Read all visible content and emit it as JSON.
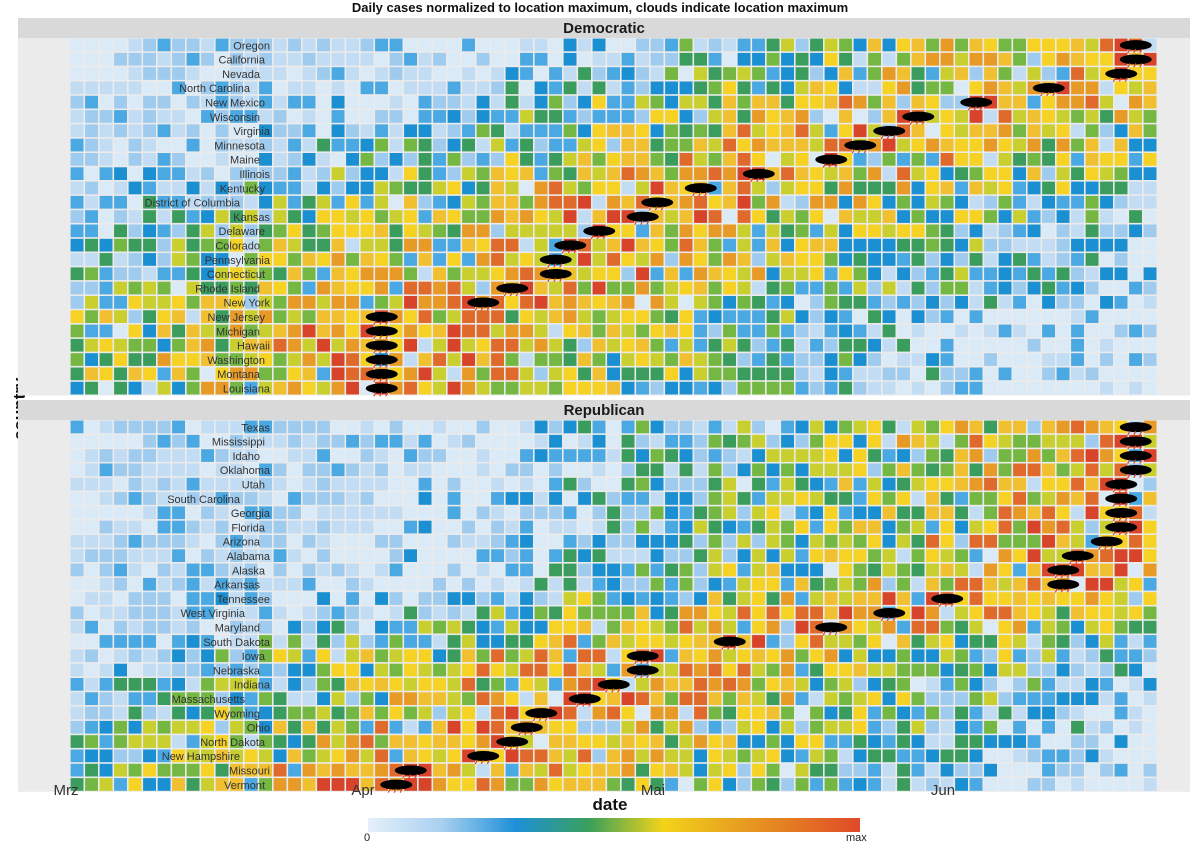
{
  "chart_data": {
    "type": "heatmap",
    "title": "Daily cases normalized to location maximum, clouds indicate location maximum",
    "xlabel": "date",
    "ylabel": "country",
    "x_ticks": [
      "Mrz",
      "Apr",
      "Mai",
      "Jun"
    ],
    "legend": {
      "min_label": "0",
      "max_label": "max"
    },
    "panels": [
      {
        "name": "Democratic",
        "rows": [
          {
            "state": "Oregon",
            "peak_day": 73
          },
          {
            "state": "California",
            "peak_day": 73
          },
          {
            "state": "Nevada",
            "peak_day": 72
          },
          {
            "state": "North Carolina",
            "peak_day": 67
          },
          {
            "state": "New Mexico",
            "peak_day": 62
          },
          {
            "state": "Wisconsin",
            "peak_day": 58
          },
          {
            "state": "Virginia",
            "peak_day": 56
          },
          {
            "state": "Minnesota",
            "peak_day": 54
          },
          {
            "state": "Maine",
            "peak_day": 52
          },
          {
            "state": "Illinois",
            "peak_day": 47
          },
          {
            "state": "Kentucky",
            "peak_day": 43
          },
          {
            "state": "District of Columbia",
            "peak_day": 40
          },
          {
            "state": "Kansas",
            "peak_day": 39
          },
          {
            "state": "Delaware",
            "peak_day": 36
          },
          {
            "state": "Colorado",
            "peak_day": 34
          },
          {
            "state": "Pennsylvania",
            "peak_day": 33
          },
          {
            "state": "Connecticut",
            "peak_day": 33
          },
          {
            "state": "Rhode Island",
            "peak_day": 30
          },
          {
            "state": "New York",
            "peak_day": 28
          },
          {
            "state": "New Jersey",
            "peak_day": 21
          },
          {
            "state": "Michigan",
            "peak_day": 21
          },
          {
            "state": "Hawaii",
            "peak_day": 21
          },
          {
            "state": "Washington",
            "peak_day": 21
          },
          {
            "state": "Montana",
            "peak_day": 21
          },
          {
            "state": "Louisiana",
            "peak_day": 21
          }
        ]
      },
      {
        "name": "Republican",
        "rows": [
          {
            "state": "Texas",
            "peak_day": 73
          },
          {
            "state": "Mississippi",
            "peak_day": 73
          },
          {
            "state": "Idaho",
            "peak_day": 73
          },
          {
            "state": "Oklahoma",
            "peak_day": 73
          },
          {
            "state": "Utah",
            "peak_day": 72
          },
          {
            "state": "South Carolina",
            "peak_day": 72
          },
          {
            "state": "Georgia",
            "peak_day": 72
          },
          {
            "state": "Florida",
            "peak_day": 72
          },
          {
            "state": "Arizona",
            "peak_day": 71
          },
          {
            "state": "Alabama",
            "peak_day": 69
          },
          {
            "state": "Alaska",
            "peak_day": 68
          },
          {
            "state": "Arkansas",
            "peak_day": 68
          },
          {
            "state": "Tennessee",
            "peak_day": 60
          },
          {
            "state": "West Virginia",
            "peak_day": 56
          },
          {
            "state": "Maryland",
            "peak_day": 52
          },
          {
            "state": "South Dakota",
            "peak_day": 45
          },
          {
            "state": "Iowa",
            "peak_day": 39
          },
          {
            "state": "Nebraska",
            "peak_day": 39
          },
          {
            "state": "Indiana",
            "peak_day": 37
          },
          {
            "state": "Massachusetts",
            "peak_day": 35
          },
          {
            "state": "Wyoming",
            "peak_day": 32
          },
          {
            "state": "Ohio",
            "peak_day": 31
          },
          {
            "state": "North Dakota",
            "peak_day": 30
          },
          {
            "state": "New Hampshire",
            "peak_day": 28
          },
          {
            "state": "Missouri",
            "peak_day": 23
          },
          {
            "state": "Vermont",
            "peak_day": 22
          }
        ]
      }
    ],
    "colors": [
      "#dbeaf7",
      "#c2ddf3",
      "#9fcbef",
      "#4aa8e2",
      "#1a8fd2",
      "#3b9d5d",
      "#74b843",
      "#c8cf2e",
      "#f5d224",
      "#f0c030",
      "#e89a26",
      "#e06a2c",
      "#d8442a"
    ]
  }
}
